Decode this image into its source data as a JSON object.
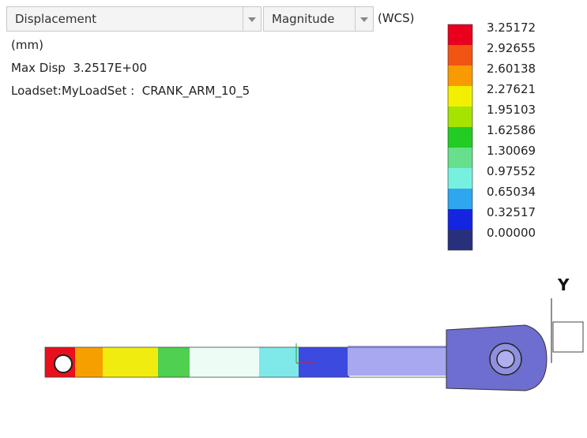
{
  "toolbar": {
    "quantity": "Displacement",
    "component": "Magnitude",
    "coords": "(WCS)"
  },
  "info": [
    "(mm)",
    "Max Disp  3.2517E+00",
    "Loadset:MyLoadSet :  CRANK_ARM_10_5"
  ],
  "legend": {
    "labels": [
      "3.25172",
      "2.92655",
      "2.60138",
      "2.27621",
      "1.95103",
      "1.62586",
      "1.30069",
      "0.97552",
      "0.65034",
      "0.32517",
      "0.00000"
    ],
    "colors": [
      "#e8001c",
      "#f25414",
      "#f99a00",
      "#f2f000",
      "#a4e400",
      "#22cc22",
      "#66e08c",
      "#78f0e0",
      "#2ea6f0",
      "#1424e0",
      "#28307e"
    ]
  },
  "axis_label": "Y"
}
